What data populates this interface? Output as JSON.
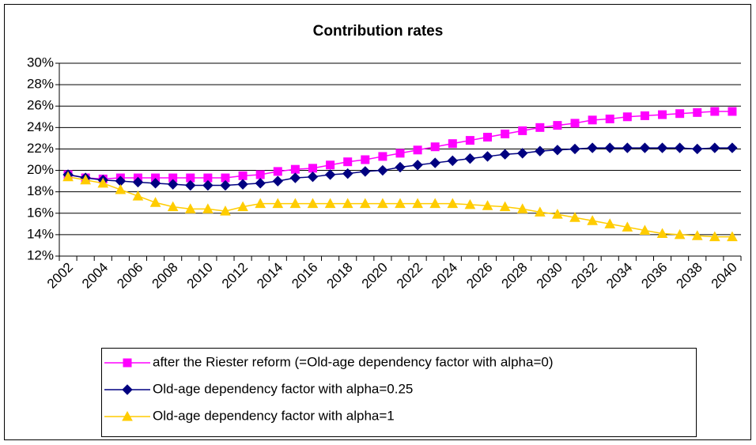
{
  "chart_data": {
    "type": "line",
    "title": "Contribution rates",
    "categories": [
      "2002",
      null,
      "2004",
      null,
      "2006",
      null,
      "2008",
      null,
      "2010",
      null,
      "2012",
      null,
      "2014",
      null,
      "2016",
      null,
      "2018",
      null,
      "2020",
      null,
      "2022",
      null,
      "2024",
      null,
      "2026",
      null,
      "2028",
      null,
      "2030",
      null,
      "2032",
      null,
      "2034",
      null,
      "2036",
      null,
      "2038",
      null,
      "2040"
    ],
    "ylim": [
      12,
      30
    ],
    "yticks": [
      {
        "value": 12,
        "label": "12%"
      },
      {
        "value": 14,
        "label": "14%"
      },
      {
        "value": 16,
        "label": "16%"
      },
      {
        "value": 18,
        "label": "18%"
      },
      {
        "value": 20,
        "label": "20%"
      },
      {
        "value": 22,
        "label": "22%"
      },
      {
        "value": 24,
        "label": "24%"
      },
      {
        "value": 26,
        "label": "26%"
      },
      {
        "value": 28,
        "label": "28%"
      },
      {
        "value": 30,
        "label": "30%"
      }
    ],
    "grid": true,
    "legend": "bottom",
    "series": [
      {
        "name": "after the Riester reform (=Old-age dependency factor with alpha=0)",
        "color": "#ff00ff",
        "marker": "square",
        "values": [
          19.6,
          19.3,
          19.2,
          19.3,
          19.3,
          19.3,
          19.3,
          19.3,
          19.3,
          19.3,
          19.5,
          19.6,
          19.9,
          20.1,
          20.2,
          20.5,
          20.8,
          21.0,
          21.3,
          21.6,
          21.9,
          22.2,
          22.5,
          22.8,
          23.1,
          23.4,
          23.7,
          24.0,
          24.2,
          24.4,
          24.7,
          24.8,
          25.0,
          25.1,
          25.2,
          25.3,
          25.4,
          25.5,
          25.5
        ]
      },
      {
        "name": "Old-age dependency factor with alpha=0.25",
        "color": "#000080",
        "marker": "diamond",
        "values": [
          19.6,
          19.3,
          19.1,
          19.0,
          18.9,
          18.8,
          18.7,
          18.6,
          18.6,
          18.6,
          18.7,
          18.8,
          19.0,
          19.3,
          19.4,
          19.6,
          19.7,
          19.9,
          20.0,
          20.3,
          20.5,
          20.7,
          20.9,
          21.1,
          21.3,
          21.5,
          21.6,
          21.8,
          21.9,
          22.0,
          22.1,
          22.1,
          22.1,
          22.1,
          22.1,
          22.1,
          22.0,
          22.1,
          22.1
        ]
      },
      {
        "name": "Old-age dependency factor with alpha=1",
        "color": "#ffcc00",
        "marker": "triangle",
        "values": [
          19.4,
          19.1,
          18.8,
          18.2,
          17.6,
          17.0,
          16.6,
          16.4,
          16.4,
          16.2,
          16.6,
          16.9,
          16.9,
          16.9,
          16.9,
          16.9,
          16.9,
          16.9,
          16.9,
          16.9,
          16.9,
          16.9,
          16.9,
          16.8,
          16.7,
          16.6,
          16.4,
          16.1,
          15.9,
          15.6,
          15.3,
          15.0,
          14.7,
          14.4,
          14.1,
          14.0,
          13.9,
          13.8,
          13.8
        ]
      }
    ]
  }
}
